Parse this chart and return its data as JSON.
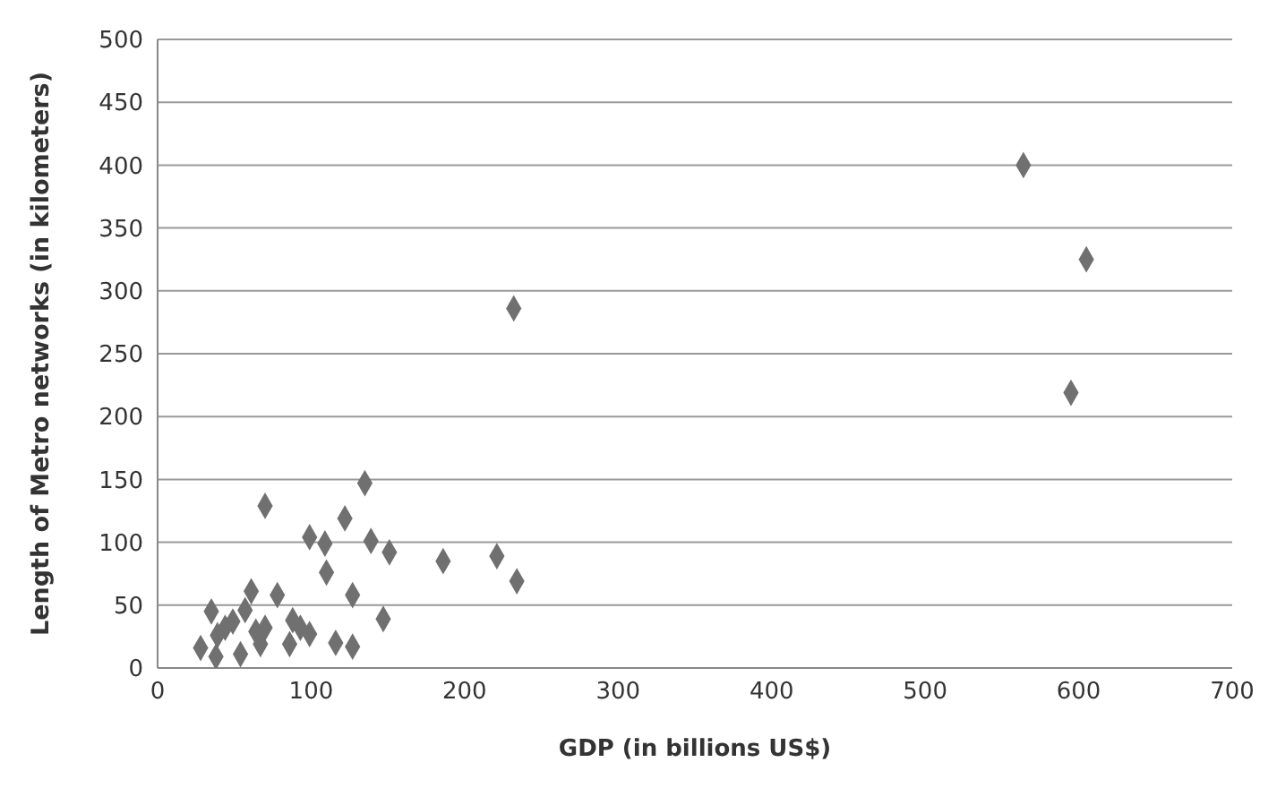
{
  "chart_data": {
    "type": "scatter",
    "xlabel": "GDP  (in billions US$)",
    "ylabel": "Length of Metro networks (in kilometers)",
    "x": [
      564,
      605,
      595,
      232,
      234,
      221,
      186,
      135,
      122,
      70,
      99,
      109,
      110,
      139,
      151,
      127,
      147,
      116,
      127,
      78,
      61,
      35,
      28,
      38,
      54,
      44,
      49,
      57,
      64,
      67,
      88,
      93,
      99,
      86,
      70,
      39
    ],
    "series": [
      {
        "color": "#707070",
        "values": [
          400,
          325,
          219,
          286,
          69,
          89,
          85,
          147,
          119,
          129,
          104,
          99,
          76,
          101,
          92,
          58,
          39,
          20,
          17,
          58,
          61,
          45,
          16,
          9,
          11,
          32,
          37,
          46,
          29,
          19,
          38,
          32,
          27,
          19,
          32,
          26
        ]
      }
    ],
    "xlim": [
      0,
      700
    ],
    "xticks": [
      0,
      100,
      200,
      300,
      400,
      500,
      600,
      700
    ],
    "ylim": [
      0,
      500
    ],
    "yticks": [
      0,
      50,
      100,
      150,
      200,
      250,
      300,
      350,
      400,
      450,
      500
    ],
    "grid": "y",
    "marker": "diamond",
    "legend": false
  }
}
